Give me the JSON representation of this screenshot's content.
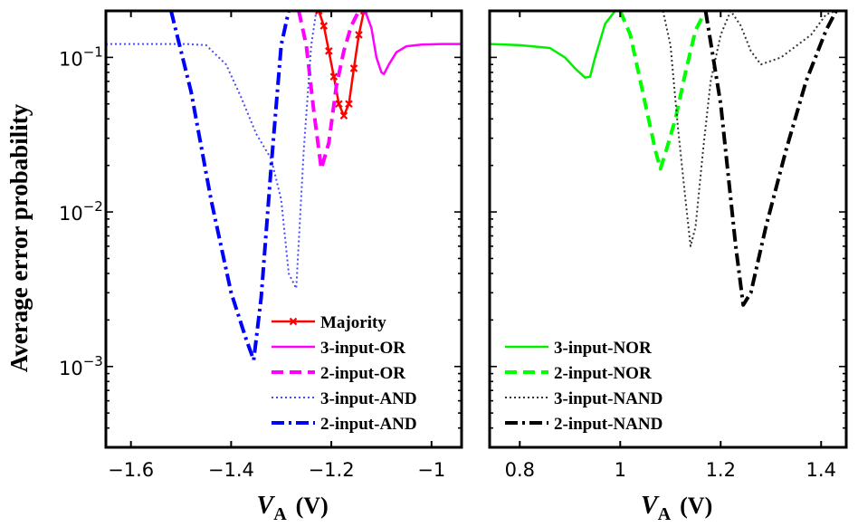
{
  "chart_data": [
    {
      "type": "line",
      "ylabel": "Average error probability",
      "xlabel_var": "V",
      "xlabel_sub": "A",
      "xlabel_unit": "(V)",
      "xlim": [
        -1.65,
        -0.94
      ],
      "ylim": [
        0.0003,
        0.2
      ],
      "yscale": "log",
      "grid": false,
      "legend_position": "bottom-right",
      "xticks": [
        -1.6,
        -1.4,
        -1.2,
        -1.0
      ],
      "xtick_labels": [
        "−1.6",
        "−1.4",
        "−1.2",
        "−1"
      ],
      "yticks": [
        0.001,
        0.01,
        0.1
      ],
      "ytick_base": "10",
      "ytick_exps": [
        "−3",
        "−2",
        "−1"
      ],
      "series": [
        {
          "name": "Majority",
          "color": "#ff0000",
          "style": "solid-marker",
          "x": [
            -1.225,
            -1.215,
            -1.205,
            -1.195,
            -1.185,
            -1.175,
            -1.165,
            -1.155,
            -1.145,
            -1.135
          ],
          "y": [
            0.2,
            0.16,
            0.11,
            0.075,
            0.05,
            0.042,
            0.05,
            0.085,
            0.14,
            0.2
          ]
        },
        {
          "name": "3-input-OR",
          "color": "#ff00ff",
          "style": "solid",
          "x": [
            -1.14,
            -1.13,
            -1.12,
            -1.11,
            -1.1,
            -1.095,
            -1.085,
            -1.07,
            -1.05,
            -1.02,
            -0.98,
            -0.94
          ],
          "y": [
            0.2,
            0.19,
            0.155,
            0.1,
            0.08,
            0.078,
            0.09,
            0.108,
            0.118,
            0.121,
            0.122,
            0.122
          ]
        },
        {
          "name": "2-input-OR",
          "color": "#ff00ff",
          "style": "dashed",
          "x": [
            -1.265,
            -1.25,
            -1.235,
            -1.22,
            -1.205,
            -1.19,
            -1.175,
            -1.16,
            -1.145
          ],
          "y": [
            0.2,
            0.12,
            0.045,
            0.019,
            0.028,
            0.065,
            0.11,
            0.16,
            0.2
          ]
        },
        {
          "name": "3-input-AND",
          "color": "#4a4aff",
          "style": "dotted",
          "x": [
            -1.65,
            -1.58,
            -1.49,
            -1.45,
            -1.41,
            -1.38,
            -1.35,
            -1.32,
            -1.3,
            -1.285,
            -1.27,
            -1.255,
            -1.24,
            -1.23
          ],
          "y": [
            0.122,
            0.122,
            0.122,
            0.12,
            0.09,
            0.055,
            0.032,
            0.022,
            0.012,
            0.004,
            0.0032,
            0.025,
            0.12,
            0.2
          ]
        },
        {
          "name": "2-input-AND",
          "color": "#0000ff",
          "style": "dashdot",
          "x": [
            -1.52,
            -1.48,
            -1.44,
            -1.4,
            -1.37,
            -1.355,
            -1.34,
            -1.32,
            -1.3,
            -1.285
          ],
          "y": [
            0.2,
            0.06,
            0.012,
            0.003,
            0.0015,
            0.0011,
            0.0028,
            0.02,
            0.12,
            0.2
          ]
        }
      ]
    },
    {
      "type": "line",
      "xlabel_var": "V",
      "xlabel_sub": "A",
      "xlabel_unit": "(V)",
      "xlim": [
        0.74,
        1.45
      ],
      "ylim": [
        0.0003,
        0.2
      ],
      "yscale": "log",
      "grid": false,
      "legend_position": "bottom-right",
      "xticks": [
        0.8,
        1.0,
        1.2,
        1.4
      ],
      "xtick_labels": [
        "0.8",
        "1",
        "1.2",
        "1.4"
      ],
      "series": [
        {
          "name": "3-input-NOR",
          "color": "#00ee00",
          "style": "solid",
          "x": [
            0.74,
            0.8,
            0.86,
            0.89,
            0.91,
            0.93,
            0.94,
            0.95,
            0.97,
            0.99,
            1.0
          ],
          "y": [
            0.122,
            0.12,
            0.115,
            0.1,
            0.085,
            0.074,
            0.075,
            0.1,
            0.165,
            0.2,
            0.2
          ]
        },
        {
          "name": "2-input-NOR",
          "color": "#00ff00",
          "style": "dashed",
          "x": [
            1.0,
            1.02,
            1.05,
            1.07,
            1.08,
            1.09,
            1.11,
            1.13,
            1.15,
            1.17
          ],
          "y": [
            0.2,
            0.14,
            0.05,
            0.025,
            0.019,
            0.024,
            0.04,
            0.08,
            0.15,
            0.2
          ]
        },
        {
          "name": "3-input-NAND",
          "color": "#333333",
          "style": "dotted",
          "x": [
            1.085,
            1.1,
            1.115,
            1.13,
            1.14,
            1.15,
            1.165,
            1.18,
            1.2,
            1.22,
            1.24,
            1.26,
            1.28,
            1.32,
            1.38,
            1.41,
            1.43
          ],
          "y": [
            0.2,
            0.12,
            0.035,
            0.012,
            0.006,
            0.008,
            0.025,
            0.07,
            0.14,
            0.2,
            0.16,
            0.11,
            0.09,
            0.1,
            0.14,
            0.19,
            0.2
          ]
        },
        {
          "name": "2-input-NAND",
          "color": "#000000",
          "style": "dashdot",
          "x": [
            1.17,
            1.2,
            1.23,
            1.245,
            1.26,
            1.29,
            1.33,
            1.37,
            1.41,
            1.43
          ],
          "y": [
            0.2,
            0.05,
            0.006,
            0.0025,
            0.003,
            0.008,
            0.025,
            0.07,
            0.15,
            0.2
          ]
        }
      ]
    }
  ]
}
